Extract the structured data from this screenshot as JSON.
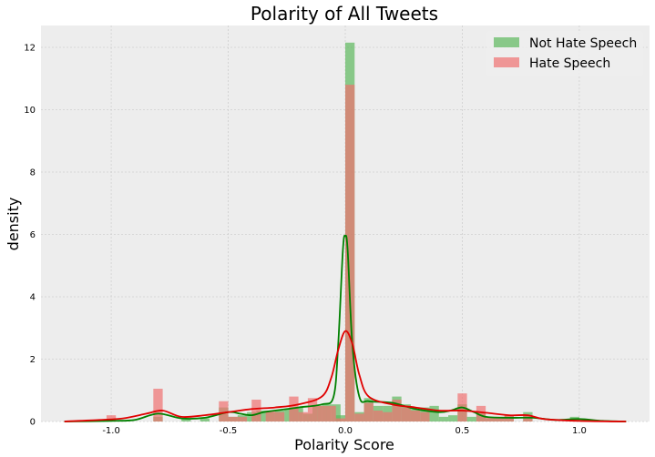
{
  "chart_data": {
    "type": "histogram",
    "title": "Polarity of All Tweets",
    "xlabel": "Polarity Score",
    "ylabel": "density",
    "xlim": [
      -1.3,
      1.3
    ],
    "ylim": [
      0,
      12.7
    ],
    "xticks": [
      "-1.0",
      "-0.5",
      "0.0",
      "0.5",
      "1.0"
    ],
    "yticks": [
      "0",
      "2",
      "4",
      "6",
      "8",
      "10",
      "12"
    ],
    "grid": true,
    "legend_position": "top-right",
    "bin_width": 0.04,
    "series": [
      {
        "name": "Not Hate Speech",
        "color": "#5cb85c",
        "line_color": "#008000",
        "bins": [
          {
            "x": -0.8,
            "h": 0.15
          },
          {
            "x": -0.68,
            "h": 0.1
          },
          {
            "x": -0.6,
            "h": 0.1
          },
          {
            "x": -0.52,
            "h": 0.45
          },
          {
            "x": -0.48,
            "h": 0.15
          },
          {
            "x": -0.44,
            "h": 0.2
          },
          {
            "x": -0.4,
            "h": 0.3
          },
          {
            "x": -0.36,
            "h": 0.35
          },
          {
            "x": -0.32,
            "h": 0.3
          },
          {
            "x": -0.28,
            "h": 0.35
          },
          {
            "x": -0.24,
            "h": 0.4
          },
          {
            "x": -0.2,
            "h": 0.45
          },
          {
            "x": -0.16,
            "h": 0.25
          },
          {
            "x": -0.12,
            "h": 0.5
          },
          {
            "x": -0.08,
            "h": 0.55
          },
          {
            "x": -0.04,
            "h": 0.55
          },
          {
            "x": -0.02,
            "h": 0.2
          },
          {
            "x": 0.02,
            "h": 12.15
          },
          {
            "x": 0.06,
            "h": 0.3
          },
          {
            "x": 0.1,
            "h": 0.75
          },
          {
            "x": 0.14,
            "h": 0.5
          },
          {
            "x": 0.18,
            "h": 0.5
          },
          {
            "x": 0.22,
            "h": 0.8
          },
          {
            "x": 0.26,
            "h": 0.55
          },
          {
            "x": 0.3,
            "h": 0.4
          },
          {
            "x": 0.34,
            "h": 0.45
          },
          {
            "x": 0.38,
            "h": 0.5
          },
          {
            "x": 0.42,
            "h": 0.15
          },
          {
            "x": 0.46,
            "h": 0.2
          },
          {
            "x": 0.5,
            "h": 0.55
          },
          {
            "x": 0.54,
            "h": 0.15
          },
          {
            "x": 0.58,
            "h": 0.3
          },
          {
            "x": 0.62,
            "h": 0.1
          },
          {
            "x": 0.66,
            "h": 0.1
          },
          {
            "x": 0.7,
            "h": 0.2
          },
          {
            "x": 0.78,
            "h": 0.3
          },
          {
            "x": 0.98,
            "h": 0.15
          }
        ],
        "kde": [
          [
            -1.2,
            0.0
          ],
          [
            -1.0,
            0.02
          ],
          [
            -0.9,
            0.05
          ],
          [
            -0.8,
            0.25
          ],
          [
            -0.7,
            0.1
          ],
          [
            -0.6,
            0.12
          ],
          [
            -0.5,
            0.3
          ],
          [
            -0.45,
            0.25
          ],
          [
            -0.4,
            0.2
          ],
          [
            -0.35,
            0.3
          ],
          [
            -0.3,
            0.35
          ],
          [
            -0.2,
            0.45
          ],
          [
            -0.1,
            0.55
          ],
          [
            -0.05,
            0.8
          ],
          [
            -0.03,
            2.5
          ],
          [
            -0.01,
            5.5
          ],
          [
            0.0,
            5.95
          ],
          [
            0.01,
            5.5
          ],
          [
            0.03,
            2.5
          ],
          [
            0.06,
            0.8
          ],
          [
            0.1,
            0.65
          ],
          [
            0.2,
            0.6
          ],
          [
            0.3,
            0.4
          ],
          [
            0.4,
            0.3
          ],
          [
            0.45,
            0.35
          ],
          [
            0.5,
            0.45
          ],
          [
            0.55,
            0.3
          ],
          [
            0.6,
            0.15
          ],
          [
            0.7,
            0.12
          ],
          [
            0.8,
            0.12
          ],
          [
            0.9,
            0.05
          ],
          [
            1.0,
            0.08
          ],
          [
            1.1,
            0.02
          ],
          [
            1.2,
            0.0
          ]
        ]
      },
      {
        "name": "Hate Speech",
        "color": "#f07070",
        "line_color": "#e00000",
        "bins": [
          {
            "x": -1.0,
            "h": 0.2
          },
          {
            "x": -0.8,
            "h": 1.05
          },
          {
            "x": -0.52,
            "h": 0.65
          },
          {
            "x": -0.48,
            "h": 0.15
          },
          {
            "x": -0.44,
            "h": 0.15
          },
          {
            "x": -0.38,
            "h": 0.7
          },
          {
            "x": -0.32,
            "h": 0.35
          },
          {
            "x": -0.28,
            "h": 0.3
          },
          {
            "x": -0.22,
            "h": 0.8
          },
          {
            "x": -0.18,
            "h": 0.3
          },
          {
            "x": -0.14,
            "h": 0.75
          },
          {
            "x": -0.1,
            "h": 0.5
          },
          {
            "x": -0.06,
            "h": 0.5
          },
          {
            "x": -0.02,
            "h": 0.1
          },
          {
            "x": 0.02,
            "h": 10.8
          },
          {
            "x": 0.06,
            "h": 0.25
          },
          {
            "x": 0.1,
            "h": 0.6
          },
          {
            "x": 0.14,
            "h": 0.35
          },
          {
            "x": 0.18,
            "h": 0.3
          },
          {
            "x": 0.22,
            "h": 0.7
          },
          {
            "x": 0.26,
            "h": 0.45
          },
          {
            "x": 0.3,
            "h": 0.35
          },
          {
            "x": 0.34,
            "h": 0.3
          },
          {
            "x": 0.5,
            "h": 0.9
          },
          {
            "x": 0.58,
            "h": 0.5
          },
          {
            "x": 0.62,
            "h": 0.15
          },
          {
            "x": 0.66,
            "h": 0.15
          },
          {
            "x": 0.7,
            "h": 0.2
          },
          {
            "x": 0.78,
            "h": 0.2
          }
        ],
        "kde": [
          [
            -1.2,
            0.0
          ],
          [
            -1.05,
            0.05
          ],
          [
            -0.95,
            0.1
          ],
          [
            -0.85,
            0.25
          ],
          [
            -0.78,
            0.35
          ],
          [
            -0.7,
            0.15
          ],
          [
            -0.6,
            0.2
          ],
          [
            -0.5,
            0.3
          ],
          [
            -0.4,
            0.4
          ],
          [
            -0.3,
            0.45
          ],
          [
            -0.2,
            0.55
          ],
          [
            -0.1,
            0.8
          ],
          [
            -0.06,
            1.4
          ],
          [
            -0.03,
            2.3
          ],
          [
            0.0,
            2.9
          ],
          [
            0.03,
            2.5
          ],
          [
            0.06,
            1.5
          ],
          [
            0.1,
            0.8
          ],
          [
            0.2,
            0.55
          ],
          [
            0.3,
            0.45
          ],
          [
            0.4,
            0.35
          ],
          [
            0.5,
            0.35
          ],
          [
            0.6,
            0.28
          ],
          [
            0.7,
            0.2
          ],
          [
            0.78,
            0.2
          ],
          [
            0.85,
            0.08
          ],
          [
            1.0,
            0.02
          ],
          [
            1.2,
            0.0
          ]
        ]
      }
    ]
  }
}
